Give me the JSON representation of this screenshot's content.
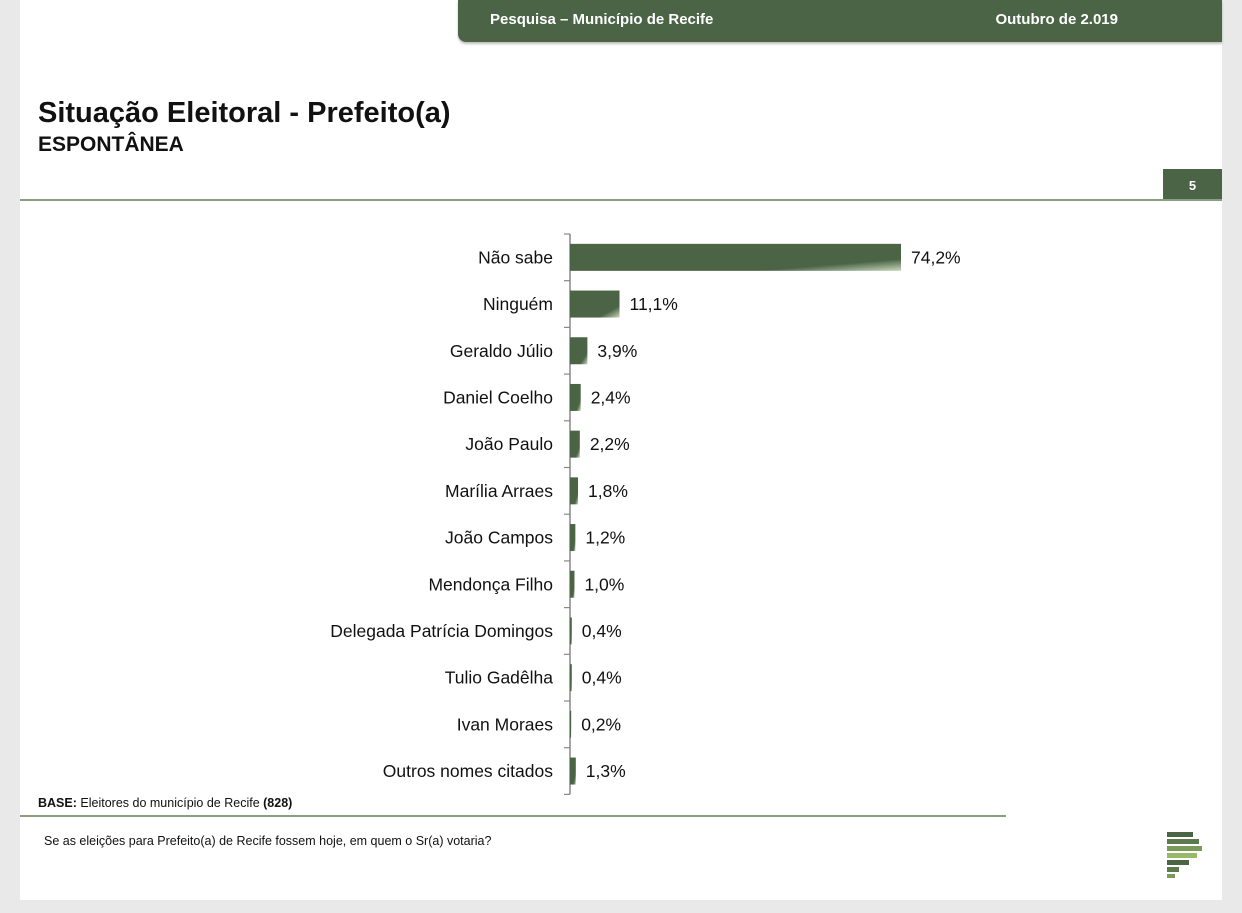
{
  "header": {
    "title": "Pesquisa – Município de Recife",
    "date": "Outubro de 2.019"
  },
  "title": "Situação Eleitoral - Prefeito(a)",
  "subtitle": "ESPONTÂNEA",
  "page_number": "5",
  "base_note": {
    "label": "BASE:",
    "text": "Eleitores do município de Recife",
    "count": "(828)"
  },
  "question": "Se as eleições para Prefeito(a) de Recife fossem hoje, em quem o Sr(a) votaria?",
  "colors": {
    "accent": "#4b6446",
    "rule": "#8aa07d"
  },
  "chart_data": {
    "type": "bar",
    "orientation": "horizontal",
    "categories": [
      "Não sabe",
      "Ninguém",
      "Geraldo Júlio",
      "Daniel Coelho",
      "João Paulo",
      "Marília Arraes",
      "João Campos",
      "Mendonça Filho",
      "Delegada Patrícia Domingos",
      "Tulio Gadêlha",
      "Ivan Moraes",
      "Outros nomes citados"
    ],
    "values": [
      74.2,
      11.1,
      3.9,
      2.4,
      2.2,
      1.8,
      1.2,
      1.0,
      0.4,
      0.4,
      0.2,
      1.3
    ],
    "labels": [
      "74,2%",
      "11,1%",
      "3,9%",
      "2,4%",
      "2,2%",
      "1,8%",
      "1,2%",
      "1,0%",
      "0,4%",
      "0,4%",
      "0,2%",
      "1,3%"
    ],
    "unit": "%",
    "xlim": [
      0,
      100
    ],
    "grid": false,
    "legend": "none"
  }
}
